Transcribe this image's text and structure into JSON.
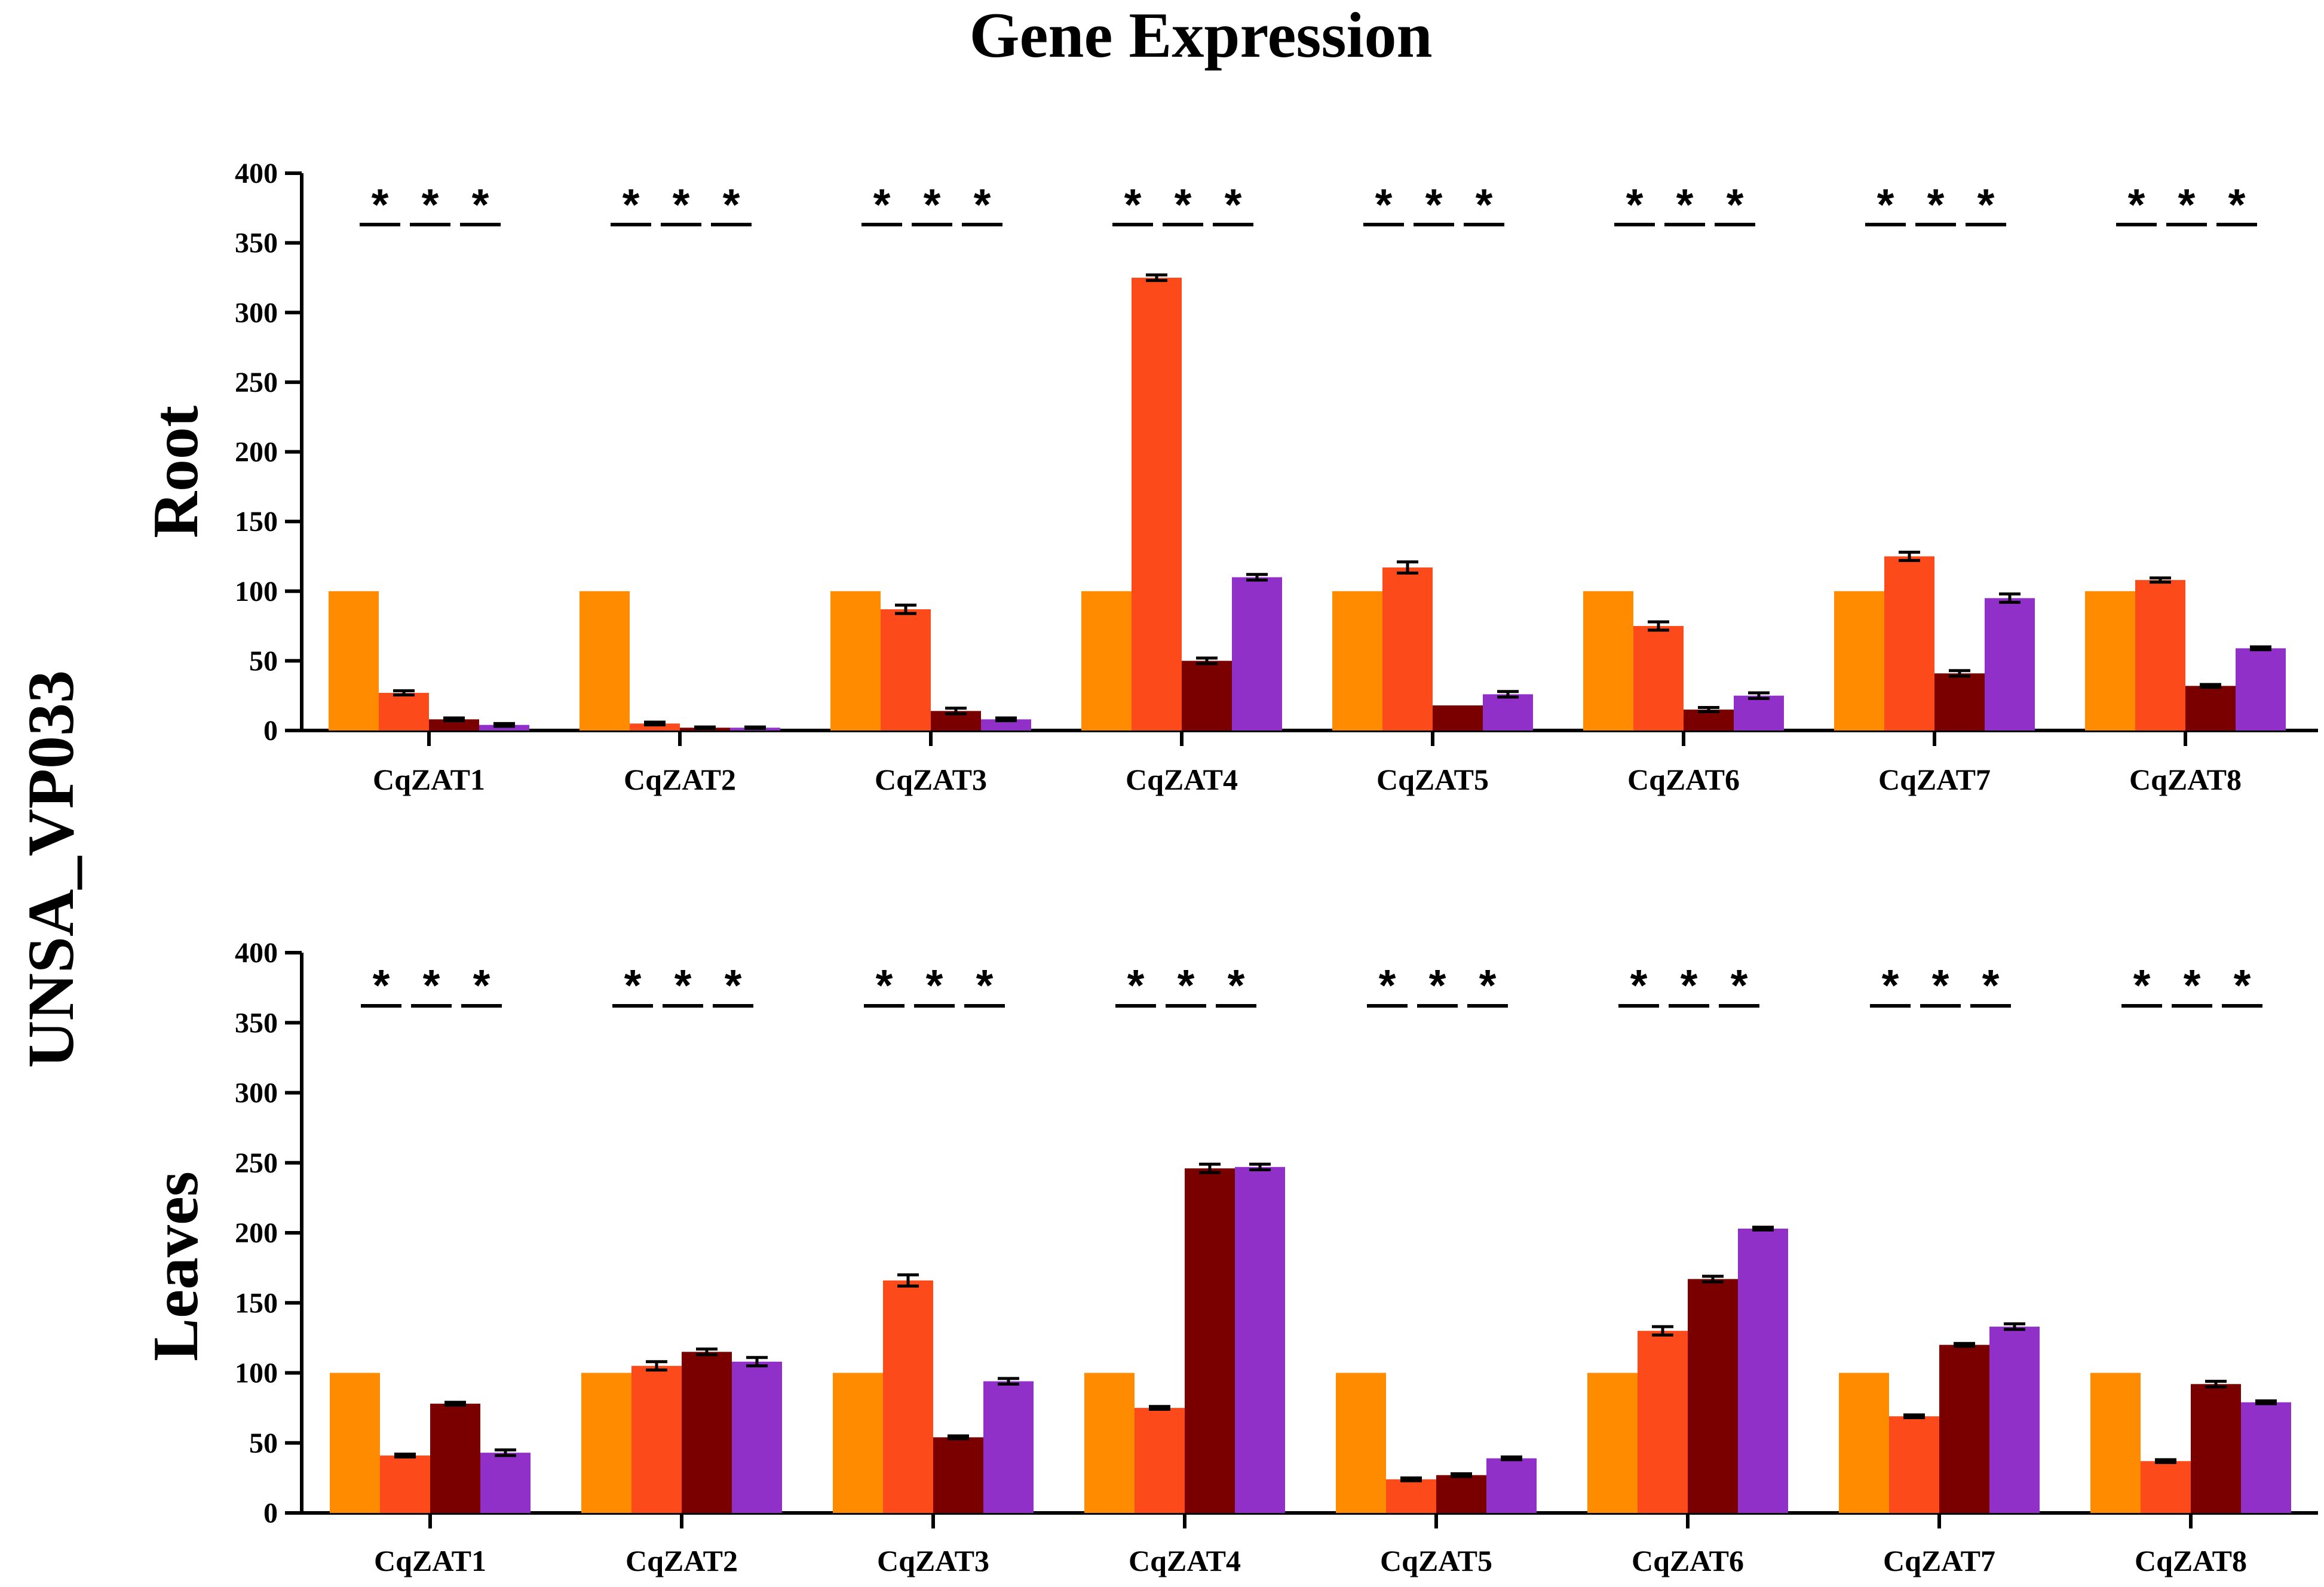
{
  "title": "Gene Expression",
  "side_label": "UNSA_VP033",
  "colors": [
    "#ff8c00",
    "#fc4a1a",
    "#7a0000",
    "#9030c8"
  ],
  "chart_data": [
    {
      "type": "bar",
      "panel": "Root",
      "ylabel": "Root",
      "ylim": [
        0,
        400
      ],
      "yticks": [
        0,
        50,
        100,
        150,
        200,
        250,
        300,
        350,
        400
      ],
      "categories": [
        "CqZAT1",
        "CqZAT2",
        "CqZAT3",
        "CqZAT4",
        "CqZAT5",
        "CqZAT6",
        "CqZAT7",
        "CqZAT8"
      ],
      "series": [
        {
          "values": [
            100,
            100,
            100,
            100,
            100,
            100,
            100,
            100
          ],
          "errors": [
            0,
            0,
            0,
            0,
            0,
            0,
            0,
            0
          ]
        },
        {
          "values": [
            27,
            5,
            87,
            325,
            117,
            75,
            125,
            108
          ],
          "errors": [
            1.5,
            1,
            3,
            2,
            4,
            3,
            3,
            1.5
          ]
        },
        {
          "values": [
            8,
            2,
            14,
            50,
            18,
            15,
            41,
            32
          ],
          "errors": [
            1,
            0.5,
            2,
            2,
            0,
            1.5,
            2,
            1
          ]
        },
        {
          "values": [
            4,
            2,
            8,
            110,
            26,
            25,
            95,
            59
          ],
          "errors": [
            1,
            0.5,
            1,
            2,
            2,
            2,
            3,
            1
          ]
        }
      ],
      "significance": [
        "*",
        "*",
        "*",
        "*",
        "*",
        "*",
        "*",
        "*",
        "*",
        "*",
        "*",
        "*",
        "*",
        "*",
        "*",
        "*",
        "*",
        "*",
        "*",
        "*",
        "*",
        "*",
        "*",
        "*"
      ]
    },
    {
      "type": "bar",
      "panel": "Leaves",
      "ylabel": "Leaves",
      "ylim": [
        0,
        400
      ],
      "yticks": [
        0,
        50,
        100,
        150,
        200,
        250,
        300,
        350,
        400
      ],
      "categories": [
        "CqZAT1",
        "CqZAT2",
        "CqZAT3",
        "CqZAT4",
        "CqZAT5",
        "CqZAT6",
        "CqZAT7",
        "CqZAT8"
      ],
      "series": [
        {
          "values": [
            100,
            100,
            100,
            100,
            100,
            100,
            100,
            100
          ],
          "errors": [
            0,
            0,
            0,
            0,
            0,
            0,
            0,
            0
          ]
        },
        {
          "values": [
            41,
            105,
            166,
            75,
            24,
            130,
            69,
            37
          ],
          "errors": [
            1,
            3,
            4,
            1,
            1,
            3,
            1,
            1
          ]
        },
        {
          "values": [
            78,
            115,
            54,
            246,
            27,
            167,
            120,
            92
          ],
          "errors": [
            1,
            2,
            1,
            3,
            1,
            2,
            1,
            2
          ]
        },
        {
          "values": [
            43,
            108,
            94,
            247,
            39,
            203,
            133,
            79
          ],
          "errors": [
            2,
            3,
            2,
            2,
            1,
            1,
            2,
            1
          ]
        }
      ],
      "significance": [
        "*",
        "*",
        "*",
        "*",
        "*",
        "*",
        "*",
        "*",
        "*",
        "*",
        "*",
        "*",
        "*",
        "*",
        "*",
        "*",
        "*",
        "*",
        "*",
        "*",
        "*",
        "*",
        "*",
        "*"
      ]
    }
  ]
}
